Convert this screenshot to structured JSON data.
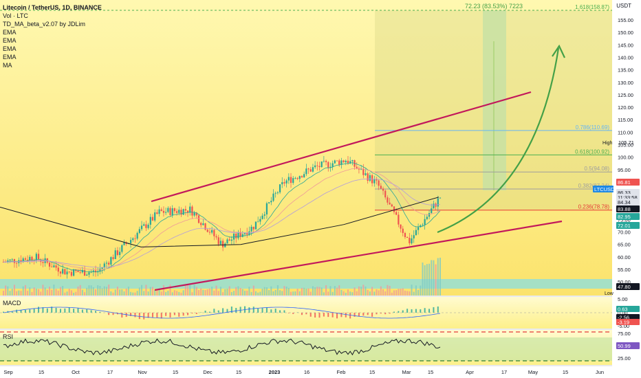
{
  "legend": {
    "title": "Litecoin / TetherUS, 1D, BINANCE",
    "indicators": [
      "Vol · LTC",
      "TD_MA_beta_v2.07 by JDLim",
      "EMA",
      "EMA",
      "EMA",
      "EMA",
      "MA"
    ]
  },
  "price_axis": {
    "currency": "USDT",
    "ticks": [
      "155.00",
      "150.00",
      "145.00",
      "140.00",
      "135.00",
      "130.00",
      "125.00",
      "120.00",
      "115.00",
      "110.00",
      "105.00",
      "100.00",
      "95.00",
      "90.00",
      "85.00",
      "80.00",
      "75.00",
      "70.00",
      "65.00",
      "60.00",
      "55.00",
      "50.00"
    ],
    "high_label": "High",
    "high_value": "105.71",
    "low_label": "Low",
    "low_value": "47.80"
  },
  "price_tags": [
    {
      "text": "86.81",
      "bg": "#ef5350"
    },
    {
      "text": "LTCUSDT",
      "bg": "#1e88e5"
    },
    {
      "text": "86.33",
      "bg": "#e0e3eb"
    },
    {
      "text": "11:33:58",
      "bg": "#e0e3eb"
    },
    {
      "text": "84.34",
      "bg": "#e0e3eb"
    },
    {
      "text": "83.88",
      "bg": "#131722"
    },
    {
      "text": "82.95",
      "bg": "#26a69a"
    },
    {
      "text": "72.01",
      "bg": "#26a69a"
    },
    {
      "text": "47.80",
      "bg": "#131722"
    }
  ],
  "fib_levels": [
    {
      "label": "1.618(158.87)",
      "value": 158.87
    },
    {
      "label": "0.786(110.69)",
      "value": 110.69
    },
    {
      "label": "0.618(100.92)",
      "value": 100.92
    },
    {
      "label": "0.5(94.08)",
      "value": 94.08
    },
    {
      "label": "0.382(87.24)",
      "value": 87.24
    },
    {
      "label": "0.236(78.78)",
      "value": 78.78
    }
  ],
  "position_label": "72.23 (83.53%) 7223",
  "time_axis": [
    "Sep",
    "15",
    "Oct",
    "17",
    "Nov",
    "15",
    "Dec",
    "15",
    "2023",
    "16",
    "Feb",
    "15",
    "Mar",
    "15",
    "Apr",
    "17",
    "May",
    "15",
    "Jun"
  ],
  "macd": {
    "label": "MACD",
    "ticks": [
      "5.00",
      "0.00",
      "-5.00"
    ],
    "tags": [
      {
        "text": "0.63",
        "bg": "#26a69a"
      },
      {
        "text": "-2.56",
        "bg": "#131722"
      },
      {
        "text": "-3.19",
        "bg": "#ef5350"
      }
    ]
  },
  "rsi": {
    "label": "RSI",
    "ticks": [
      "75.00",
      "50.00",
      "25.00"
    ],
    "tags": [
      {
        "text": "50.99",
        "bg": "#7e57c2"
      }
    ]
  },
  "colors": {
    "up": "#26a69a",
    "down": "#ef5350",
    "channel": "#c2185b",
    "arrow": "#43a047",
    "gradient_top": "#fff8b0",
    "gradient_bottom": "#fbe36c",
    "long_target_zone": "#c5e1a5",
    "rsi_band": "#c8e6a5",
    "volume_band": "#80deea"
  },
  "icons": {
    "crosshair": "dashed-line"
  },
  "chart_data": {
    "type": "candlestick",
    "symbol": "LTCUSDT",
    "price_ylim": [
      45,
      160
    ],
    "series_closes_approx": [
      {
        "date": "Sep",
        "close": 58
      },
      {
        "date": "Sep 15",
        "close": 60
      },
      {
        "date": "Oct",
        "close": 54
      },
      {
        "date": "Oct 17",
        "close": 54
      },
      {
        "date": "Nov",
        "close": 66
      },
      {
        "date": "Nov 15",
        "close": 78
      },
      {
        "date": "Dec",
        "close": 79
      },
      {
        "date": "Dec 15",
        "close": 65
      },
      {
        "date": "2023",
        "close": 72
      },
      {
        "date": "Jan 16",
        "close": 90
      },
      {
        "date": "Feb",
        "close": 96
      },
      {
        "date": "Feb 15",
        "close": 99
      },
      {
        "date": "Mar",
        "close": 89
      },
      {
        "date": "Mar 10",
        "close": 66
      },
      {
        "date": "Mar 15",
        "close": 84
      }
    ],
    "ma_long": [
      {
        "date": "Sep",
        "value": 80
      },
      {
        "date": "Nov",
        "value": 64
      },
      {
        "date": "Dec 15",
        "value": 65
      },
      {
        "date": "Feb",
        "value": 73
      },
      {
        "date": "Mar 15",
        "value": 84
      }
    ],
    "high": 105.71,
    "low": 47.8,
    "last": 86.33
  }
}
